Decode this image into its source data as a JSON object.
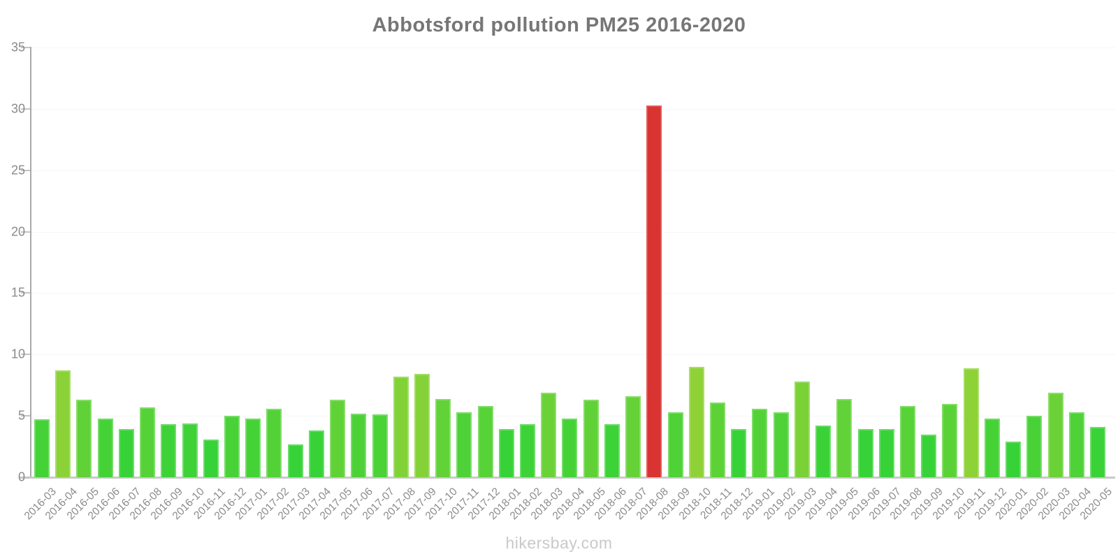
{
  "title": "Abbotsford pollution PM25 2016-2020",
  "watermark": "hikersbay.com",
  "colors": {
    "bar_green": "#33d233",
    "bar_yellowgreen": "#8cd832",
    "bar_red": "#d93332",
    "bar_red_border": "#e25b55",
    "axis_line": "#a9a9a9",
    "x_axis_line": "#c9c9c9",
    "gridline": "#f6f6f6",
    "tick_label": "#8a8a8a",
    "title_color": "#767676",
    "watermark_color": "#c9c9c9"
  },
  "chart_data": {
    "type": "bar",
    "title": "Abbotsford pollution PM25 2016-2020",
    "xlabel": "",
    "ylabel": "",
    "ylim": [
      0,
      35
    ],
    "yticks": [
      0,
      5,
      10,
      15,
      20,
      25,
      30,
      35
    ],
    "grid": "horizontal-faint",
    "legend": "none",
    "bar_orientation": "vertical",
    "categories": [
      "2016-03",
      "2016-04",
      "2016-05",
      "2016-06",
      "2016-07",
      "2016-08",
      "2016-09",
      "2016-10",
      "2016-11",
      "2016-12",
      "2017-01",
      "2017-02",
      "2017-03",
      "2017-04",
      "2017-05",
      "2017-06",
      "2017-07",
      "2017-08",
      "2017-09",
      "2017-10",
      "2017-11",
      "2017-12",
      "2018-01",
      "2018-02",
      "2018-03",
      "2018-04",
      "2018-05",
      "2018-06",
      "2018-07",
      "2018-08",
      "2018-09",
      "2018-10",
      "2018-11",
      "2018-12",
      "2019-01",
      "2019-02",
      "2019-03",
      "2019-04",
      "2019-05",
      "2019-06",
      "2019-07",
      "2019-08",
      "2019-09",
      "2019-10",
      "2019-11",
      "2019-12",
      "2020-01",
      "2020-02",
      "2020-03",
      "2020-04",
      "2020-05"
    ],
    "values": [
      4.7,
      8.7,
      6.3,
      4.8,
      3.9,
      5.7,
      4.3,
      4.4,
      3.1,
      5.0,
      4.8,
      5.6,
      2.7,
      3.8,
      6.3,
      5.2,
      5.1,
      8.2,
      8.4,
      6.4,
      5.3,
      5.8,
      3.9,
      4.3,
      6.9,
      4.8,
      6.3,
      4.3,
      6.6,
      30.3,
      5.3,
      9.0,
      6.1,
      3.9,
      5.6,
      5.3,
      7.8,
      4.2,
      6.4,
      3.9,
      3.9,
      5.8,
      3.5,
      6.0,
      8.9,
      4.8,
      2.9,
      5.0,
      6.9,
      5.3,
      4.1
    ],
    "highlight": {
      "category": "2018-08",
      "value": 30.3,
      "color": "#d93332"
    },
    "color_rule": {
      "description": "bar hue interpolates green(120)->yellowgreen(86) for values 4->9; values >= red_threshold are red",
      "green_hue": 120,
      "yellow_hue": 86,
      "hue_v0": 4,
      "hue_v1": 9,
      "saturation": 63,
      "lightness": 52,
      "border_lightness": 64,
      "red_threshold": 20
    }
  }
}
